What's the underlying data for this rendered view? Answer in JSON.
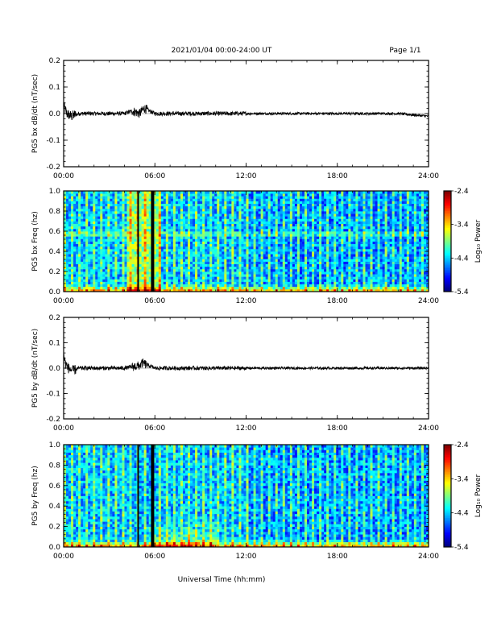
{
  "header": {
    "title": "2021/01/04  00:00-24:00 UT",
    "page": "Page 1/1"
  },
  "xaxis_label": "Universal Time (hh:mm)",
  "chart_data": [
    {
      "type": "line",
      "ylabel": "PG5 bx dB/dt (nT/sec)",
      "xlim": [
        0,
        24
      ],
      "ylim": [
        -0.2,
        0.2
      ],
      "x_ticks": [
        "00:00",
        "06:00",
        "12:00",
        "18:00",
        "24:00"
      ],
      "y_ticks": [
        "0.2",
        "0.1",
        "0.0",
        "-0.1",
        "-0.2"
      ],
      "series": [
        {
          "x": [
            0,
            0.2,
            0.5,
            1,
            2,
            3,
            4,
            4.5,
            5,
            5.3,
            6,
            8,
            10,
            12,
            14,
            16,
            18,
            20,
            22,
            24
          ],
          "y": [
            0.03,
            0.0,
            -0.01,
            0.0,
            0.0,
            0.0,
            0.0,
            0.01,
            0.0,
            0.02,
            0.0,
            0.0,
            0.0,
            0.0,
            0.0,
            0.0,
            0.0,
            0.0,
            0.0,
            -0.01
          ]
        }
      ]
    },
    {
      "type": "heatmap",
      "ylabel": "PG5 bx Freq (hz)",
      "xlim": [
        0,
        24
      ],
      "ylim": [
        0,
        1.0
      ],
      "x_ticks": [
        "00:00",
        "06:00",
        "12:00",
        "18:00",
        "24:00"
      ],
      "y_ticks": [
        "1.0",
        "0.8",
        "0.6",
        "0.4",
        "0.2",
        "0.0"
      ],
      "colorbar": {
        "label": "Log₁₀ Power",
        "range": [
          -5.4,
          -2.4
        ],
        "ticks": [
          "-2.4",
          "-3.4",
          "-4.4",
          "-5.4"
        ]
      },
      "data_gaps_hours": [
        4.9,
        5.85
      ]
    },
    {
      "type": "line",
      "ylabel": "PG5 by dB/dt (nT/sec)",
      "xlim": [
        0,
        24
      ],
      "ylim": [
        -0.2,
        0.2
      ],
      "x_ticks": [
        "00:00",
        "06:00",
        "12:00",
        "18:00",
        "24:00"
      ],
      "y_ticks": [
        "0.2",
        "0.1",
        "0.0",
        "-0.1",
        "-0.2"
      ],
      "series": [
        {
          "x": [
            0,
            0.1,
            0.3,
            0.6,
            1,
            2,
            3,
            4,
            5,
            5.2,
            6,
            8,
            10,
            12,
            14,
            16,
            18,
            20,
            22,
            24
          ],
          "y": [
            0.06,
            0.02,
            0.0,
            -0.01,
            0.0,
            0.0,
            0.0,
            0.0,
            0.01,
            0.02,
            0.0,
            0.0,
            0.0,
            0.0,
            0.0,
            0.0,
            0.0,
            0.0,
            0.0,
            0.0
          ]
        }
      ]
    },
    {
      "type": "heatmap",
      "ylabel": "PG5 by Freq (hz)",
      "xlim": [
        0,
        24
      ],
      "ylim": [
        0,
        1.0
      ],
      "x_ticks": [
        "00:00",
        "06:00",
        "12:00",
        "18:00",
        "24:00"
      ],
      "y_ticks": [
        "1.0",
        "0.8",
        "0.6",
        "0.4",
        "0.2",
        "0.0"
      ],
      "colorbar": {
        "label": "Log₁₀ Power",
        "range": [
          -5.4,
          -2.4
        ],
        "ticks": [
          "-2.4",
          "-3.4",
          "-4.4",
          "-5.4"
        ]
      },
      "data_gaps_hours": [
        4.9,
        5.85
      ]
    }
  ]
}
